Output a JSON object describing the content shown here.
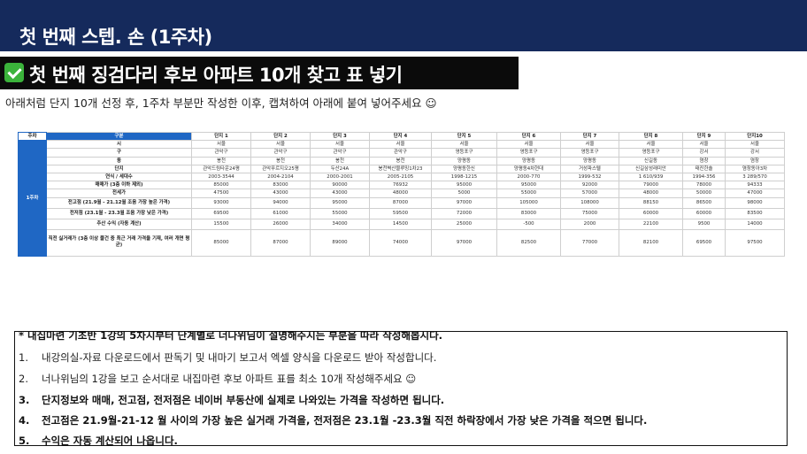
{
  "header": {
    "title": "첫 번째 스텝. 손 (1주차)"
  },
  "section": {
    "icon": "check-mark-icon",
    "title": "첫 번째 징검다리 후보 아파트 10개 찾고 표 넣기"
  },
  "instruction": "아래처럼 단지 10개 선정 후, 1주차 부분만 작성한 이후, 캡쳐하여 아래에 붙여 넣어주세요 ☺",
  "table": {
    "corner": "주차",
    "header_label": "구분",
    "week_label": "1주차",
    "columns": [
      "단지 1",
      "단지 2",
      "단지 3",
      "단지 4",
      "단지 5",
      "단지 6",
      "단지 7",
      "단지 8",
      "단지 9",
      "단지10"
    ],
    "rows": [
      {
        "label": "시",
        "values": [
          "서울",
          "서울",
          "서울",
          "서울",
          "서울",
          "서울",
          "서울",
          "서울",
          "서울",
          "서울"
        ]
      },
      {
        "label": "구",
        "values": [
          "관악구",
          "관악구",
          "관악구",
          "관악구",
          "영등포구",
          "영등포구",
          "영등포구",
          "영등포구",
          "강서",
          "강서"
        ]
      },
      {
        "label": "동",
        "values": [
          "봉천",
          "봉천",
          "봉천",
          "봉천",
          "양평동",
          "양평동",
          "양평동",
          "신길동",
          "염창",
          "염창"
        ]
      },
      {
        "label": "단지",
        "values": [
          "관악드림타운24평",
          "관악푸르지오25평",
          "두산24A",
          "봉천벽산블루밍1차23",
          "양평동한신",
          "양평동4차현대",
          "거성파스텔",
          "신길삼성래미안",
          "태진한솔",
          "염창동아3차"
        ]
      },
      {
        "label": "연식 / 세대수",
        "values": [
          "2003-3544",
          "2004-2104",
          "2000-2001",
          "2005-2105",
          "1998-1215",
          "2000-770",
          "1999-532",
          "1 610/939",
          "1994-356",
          "3 289/570"
        ]
      },
      {
        "label": "매매가 (3층 이하 제외)",
        "values": [
          "85000",
          "83000",
          "90000",
          "76932",
          "95000",
          "95000",
          "92000",
          "79000",
          "78000",
          "94333"
        ]
      },
      {
        "label": "전세가",
        "values": [
          "47500",
          "43000",
          "43000",
          "48000",
          "5000",
          "55000",
          "57000",
          "48000",
          "50000",
          "47000"
        ]
      },
      {
        "label": "전고점 (21.9월 - 21.12월 조음 가장 높은 가격)",
        "values": [
          "93000",
          "94000",
          "95000",
          "87000",
          "97000",
          "105000",
          "108000",
          "88150",
          "86500",
          "98000"
        ]
      },
      {
        "label": "전저점 (23.1월 - 23.3월 조음 가장 낮은 가격)",
        "values": [
          "69500",
          "61000",
          "55000",
          "59500",
          "72000",
          "83000",
          "75000",
          "60000",
          "60000",
          "83500"
        ]
      },
      {
        "label": "추산 수익 (자동 계산)",
        "values": [
          "15500",
          "26000",
          "34000",
          "14500",
          "25000",
          "-500",
          "2000",
          "22100",
          "9500",
          "14000"
        ]
      },
      {
        "label": "직전 실거래가 (3층 이상 물건 중 최근 거래 가격을 기재, 여러 개면 평균)",
        "values": [
          "85000",
          "87000",
          "89000",
          "74000",
          "97000",
          "82500",
          "77000",
          "82100",
          "69500",
          "97500"
        ]
      }
    ]
  },
  "notes": {
    "header": "* 내집마련 기초반 1강의 5차시부터 단계별로 너나위님이 설명해주시는 부분을 따라 작성해봅시다.",
    "items": [
      {
        "num": "1.",
        "text": "내강의실-자료 다운로드에서 판독기 및 내마기 보고서 엑셀 양식을 다운로드 받아 작성합니다."
      },
      {
        "num": "2.",
        "text": "너나위님의 1강을 보고 순서대로 내집마련 후보 아파트 표를 최소 10개  작성해주세요 ☺"
      },
      {
        "num": "3.",
        "text": "단지정보와 매매,  전고점, 전저점은 네이버 부동산에 실제로 나와있는 가격을 작성하면 됩니다."
      },
      {
        "num": "4.",
        "text": "전고점은 21.9월-21-12 월 사이의 가장 높은 실거래 가격을, 전저점은 23.1월 -23.3월 직전 하락장에서 가장 낮은 가격을 적으면 됩니다."
      },
      {
        "num": "5.",
        "text": "수익은 자동 계산되어 나옵니다."
      }
    ]
  }
}
